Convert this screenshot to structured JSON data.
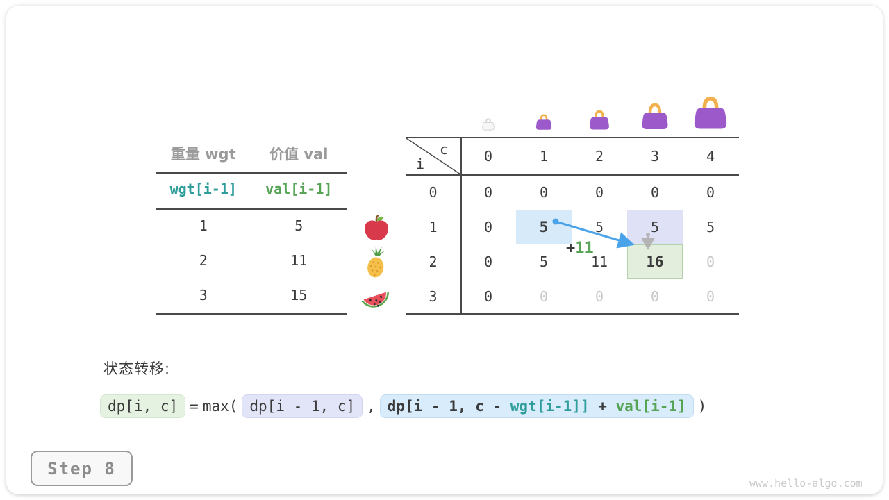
{
  "colors": {
    "teal": "#2f9e9b",
    "green": "#57a457",
    "dark": "#3b3b3b",
    "gray_header": "#9a9a9a",
    "faded": "#c8c8c8",
    "arrow_blue": "#4aa3e8",
    "arrow_gray": "#b4b4b4",
    "cell_blue": "#d7eafa",
    "cell_lavender": "#dfe2f6",
    "cell_green": "#e3efdc",
    "cell_green_border": "#b3d2ac",
    "bag_purple": "#9b59c9",
    "bag_handle": "#f2b14e"
  },
  "items_table": {
    "headers": [
      "重量 wgt",
      "价值 val"
    ],
    "formula_row": {
      "wgt": "wgt[i-1]",
      "val": "val[i-1]"
    },
    "rows": [
      {
        "wgt": "1",
        "val": "5"
      },
      {
        "wgt": "2",
        "val": "11"
      },
      {
        "wgt": "3",
        "val": "15"
      }
    ],
    "row_icons": [
      "apple-icon",
      "pineapple-icon",
      "watermelon-icon"
    ]
  },
  "dp_table": {
    "corner": {
      "row_var": "i",
      "col_var": "c"
    },
    "col_headers": [
      "0",
      "1",
      "2",
      "3",
      "4"
    ],
    "row_headers": [
      "0",
      "1",
      "2",
      "3"
    ],
    "bags": [
      {
        "name": "bag-ghost-icon",
        "style": "ghost",
        "size": 18
      },
      {
        "name": "bag-icon",
        "style": "purple",
        "size": 24
      },
      {
        "name": "bag-icon",
        "style": "purple",
        "size": 30
      },
      {
        "name": "bag-icon",
        "style": "purple",
        "size": 40
      },
      {
        "name": "bag-icon",
        "style": "purple",
        "size": 50
      }
    ],
    "rows": [
      [
        {
          "v": "0"
        },
        {
          "v": "0"
        },
        {
          "v": "0"
        },
        {
          "v": "0"
        },
        {
          "v": "0"
        }
      ],
      [
        {
          "v": "0"
        },
        {
          "v": "5",
          "bold": true,
          "hl": "blue"
        },
        {
          "v": "5"
        },
        {
          "v": "5",
          "hl": "lavender"
        },
        {
          "v": "5"
        }
      ],
      [
        {
          "v": "0"
        },
        {
          "v": "5"
        },
        {
          "v": "11"
        },
        {
          "v": "16",
          "bold": true,
          "hl": "green"
        },
        {
          "v": "0",
          "faded": true
        }
      ],
      [
        {
          "v": "0"
        },
        {
          "v": "0",
          "faded": true
        },
        {
          "v": "0",
          "faded": true
        },
        {
          "v": "0",
          "faded": true
        },
        {
          "v": "0",
          "faded": true
        }
      ]
    ]
  },
  "annotation": {
    "plus": "+",
    "value": "11"
  },
  "transition": {
    "label": "状态转移:",
    "lhs": "dp[i, c]",
    "equals": "=",
    "max_open": "max(",
    "arg1": "dp[i - 1, c]",
    "comma": ",",
    "arg2_parts": [
      {
        "text": "dp[i - 1, c - ",
        "color": "dark"
      },
      {
        "text": "wgt[i-1]]",
        "color": "teal"
      },
      {
        "text": " + ",
        "color": "dark"
      },
      {
        "text": "val[i-1]",
        "color": "green"
      }
    ],
    "close": ")"
  },
  "step_badge": "Step 8",
  "watermark": "www.hello-algo.com"
}
